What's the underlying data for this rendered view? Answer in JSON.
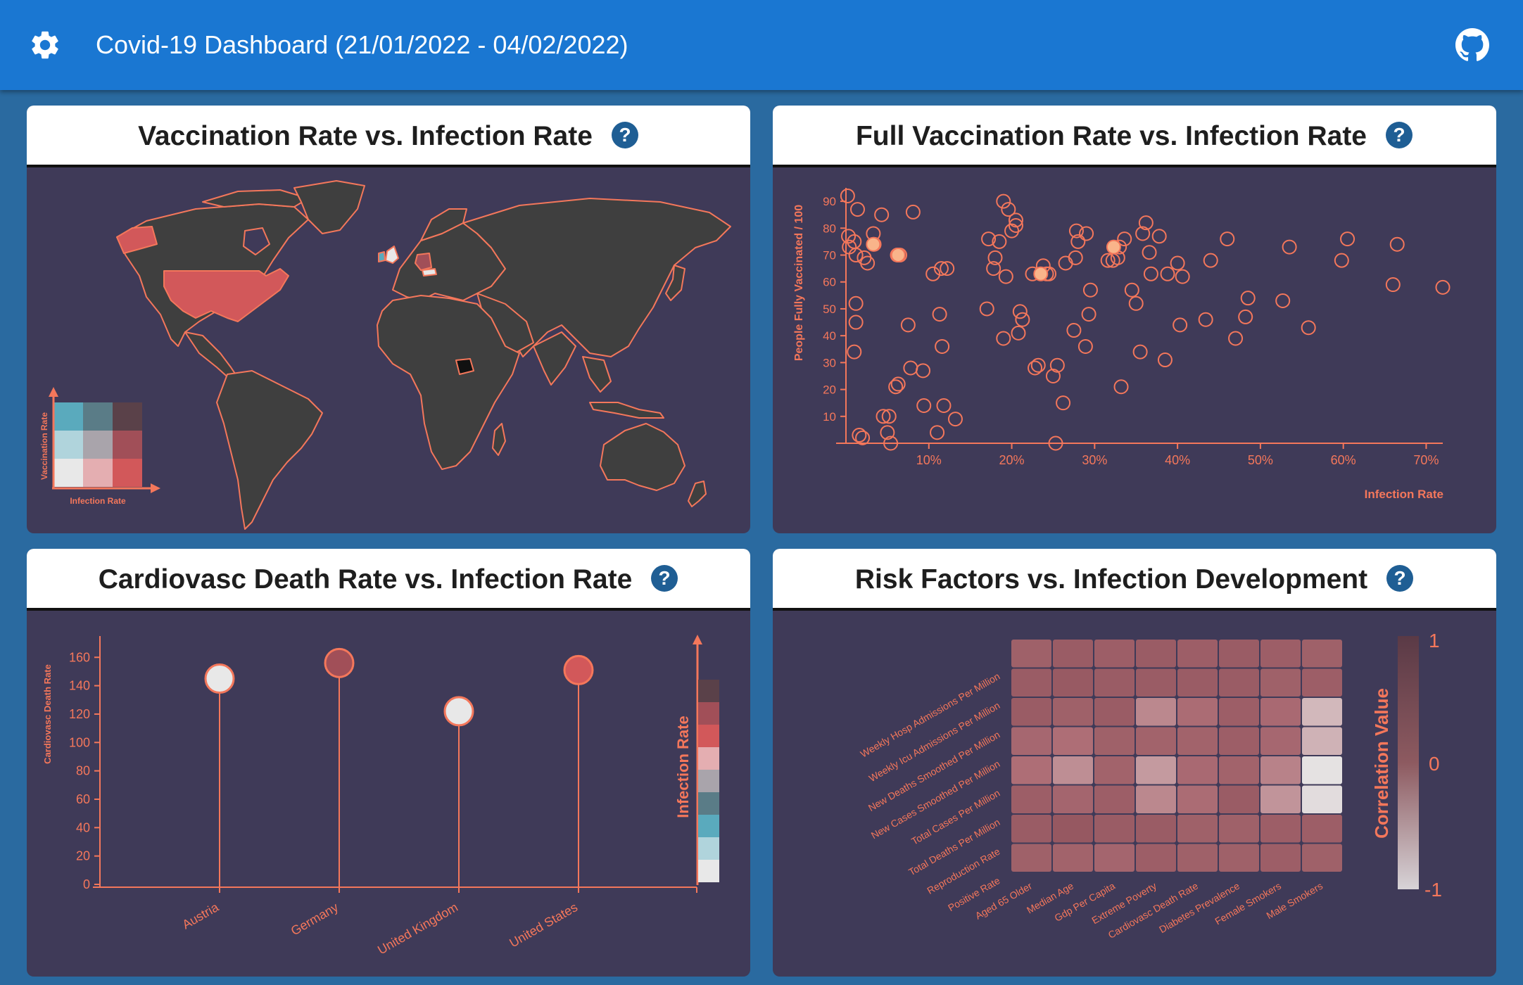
{
  "app": {
    "title": "Covid-19 Dashboard (21/01/2022 - 04/02/2022)",
    "settings_icon": "gear-icon",
    "github_icon": "github-icon"
  },
  "colors": {
    "appbar": "#1a77d2",
    "page_bg": "#2a6aa0",
    "panel_bg": "#3f3a58",
    "accent": "#f4775b",
    "land": "#3f3f3f"
  },
  "panels": {
    "map": {
      "title": "Vaccination Rate vs. Infection Rate",
      "legend_y_label": "Vaccination Rate",
      "legend_x_label": "Infection Rate",
      "bivariate_colors": [
        [
          "#5aaabd",
          "#5a7c87",
          "#5a4149"
        ],
        [
          "#b0d4dc",
          "#a9a4ab",
          "#a14f58"
        ],
        [
          "#e8e8e8",
          "#e4aeb1",
          "#d2585a"
        ]
      ]
    },
    "scatter": {
      "title": "Full Vaccination Rate vs. Infection Rate",
      "ylabel": "People Fully Vaccinated / 100",
      "xlabel": "Infection Rate"
    },
    "lollipop": {
      "title": "Cardiovasc Death Rate vs. Infection Rate",
      "ylabel": "Cardiovasc Death Rate",
      "legend_label": "Infection Rate"
    },
    "heatmap": {
      "title": "Risk Factors vs. Infection Development",
      "legend_label": "Correlation Value",
      "legend_max": "1",
      "legend_mid": "0",
      "legend_min": "-1"
    }
  },
  "chart_data": [
    {
      "type": "scatter",
      "title": "Full Vaccination Rate vs. Infection Rate",
      "xlabel": "Infection Rate",
      "ylabel": "People Fully Vaccinated / 100",
      "xlim": [
        0,
        0.72
      ],
      "ylim": [
        0,
        95
      ],
      "xticks": [
        "10%",
        "20%",
        "30%",
        "40%",
        "50%",
        "60%",
        "70%"
      ],
      "yticks": [
        "10",
        "20",
        "30",
        "40",
        "50",
        "60",
        "70",
        "80",
        "90"
      ],
      "points": [
        [
          0.002,
          92
        ],
        [
          0.003,
          77
        ],
        [
          0.004,
          73
        ],
        [
          0.014,
          87
        ],
        [
          0.01,
          75
        ],
        [
          0.012,
          70
        ],
        [
          0.026,
          67
        ],
        [
          0.022,
          69
        ],
        [
          0.033,
          78
        ],
        [
          0.034,
          74
        ],
        [
          0.043,
          85
        ],
        [
          0.081,
          86
        ],
        [
          0.062,
          70
        ],
        [
          0.065,
          70
        ],
        [
          0.012,
          52
        ],
        [
          0.012,
          45
        ],
        [
          0.01,
          34
        ],
        [
          0.016,
          3
        ],
        [
          0.02,
          2
        ],
        [
          0.045,
          10
        ],
        [
          0.052,
          10
        ],
        [
          0.05,
          4
        ],
        [
          0.054,
          0
        ],
        [
          0.06,
          21
        ],
        [
          0.063,
          22
        ],
        [
          0.078,
          28
        ],
        [
          0.093,
          27
        ],
        [
          0.075,
          44
        ],
        [
          0.094,
          14
        ],
        [
          0.11,
          4
        ],
        [
          0.118,
          14
        ],
        [
          0.132,
          9
        ],
        [
          0.105,
          63
        ],
        [
          0.115,
          65
        ],
        [
          0.122,
          65
        ],
        [
          0.113,
          48
        ],
        [
          0.116,
          36
        ],
        [
          0.17,
          50
        ],
        [
          0.172,
          76
        ],
        [
          0.178,
          65
        ],
        [
          0.18,
          69
        ],
        [
          0.185,
          75
        ],
        [
          0.19,
          90
        ],
        [
          0.196,
          87
        ],
        [
          0.193,
          62
        ],
        [
          0.19,
          39
        ],
        [
          0.2,
          79
        ],
        [
          0.205,
          81
        ],
        [
          0.205,
          83
        ],
        [
          0.208,
          41
        ],
        [
          0.21,
          49
        ],
        [
          0.213,
          46
        ],
        [
          0.225,
          63
        ],
        [
          0.228,
          28
        ],
        [
          0.232,
          29
        ],
        [
          0.238,
          66
        ],
        [
          0.242,
          63
        ],
        [
          0.245,
          63
        ],
        [
          0.25,
          25
        ],
        [
          0.253,
          0
        ],
        [
          0.255,
          29
        ],
        [
          0.262,
          15
        ],
        [
          0.265,
          67
        ],
        [
          0.275,
          42
        ],
        [
          0.277,
          69
        ],
        [
          0.278,
          79
        ],
        [
          0.28,
          75
        ],
        [
          0.29,
          78
        ],
        [
          0.289,
          36
        ],
        [
          0.293,
          48
        ],
        [
          0.295,
          57
        ],
        [
          0.316,
          68
        ],
        [
          0.322,
          68
        ],
        [
          0.328,
          69
        ],
        [
          0.33,
          73
        ],
        [
          0.332,
          21
        ],
        [
          0.336,
          76
        ],
        [
          0.345,
          57
        ],
        [
          0.35,
          52
        ],
        [
          0.355,
          34
        ],
        [
          0.358,
          78
        ],
        [
          0.362,
          82
        ],
        [
          0.366,
          71
        ],
        [
          0.368,
          63
        ],
        [
          0.378,
          77
        ],
        [
          0.385,
          31
        ],
        [
          0.388,
          63
        ],
        [
          0.4,
          67
        ],
        [
          0.403,
          44
        ],
        [
          0.406,
          62
        ],
        [
          0.434,
          46
        ],
        [
          0.44,
          68
        ],
        [
          0.46,
          76
        ],
        [
          0.47,
          39
        ],
        [
          0.482,
          47
        ],
        [
          0.485,
          54
        ],
        [
          0.527,
          53
        ],
        [
          0.535,
          73
        ],
        [
          0.558,
          43
        ],
        [
          0.598,
          68
        ],
        [
          0.605,
          76
        ],
        [
          0.66,
          59
        ],
        [
          0.665,
          74
        ],
        [
          0.72,
          58
        ]
      ],
      "highlighted": [
        [
          0.033,
          74
        ],
        [
          0.063,
          70
        ],
        [
          0.323,
          73
        ],
        [
          0.235,
          63
        ]
      ]
    },
    {
      "type": "bar",
      "subtype": "lollipop",
      "title": "Cardiovasc Death Rate vs. Infection Rate",
      "ylabel": "Cardiovasc Death Rate",
      "categories": [
        "Austria",
        "Germany",
        "United Kingdom",
        "United States"
      ],
      "values": [
        145,
        156,
        122,
        151
      ],
      "point_colors": [
        "#e8e8e8",
        "#a14f58",
        "#e8e8e8",
        "#d2585a"
      ],
      "ylim": [
        0,
        175
      ],
      "yticks": [
        0,
        20,
        40,
        60,
        80,
        100,
        120,
        140,
        160
      ]
    },
    {
      "type": "heatmap",
      "title": "Risk Factors vs. Infection Development",
      "rows": [
        "Weekly Hosp Admissions Per Million",
        "Weekly Icu Admissions Per Million",
        "New Deaths Smoothed Per Million",
        "New Cases Smoothed Per Million",
        "Total Cases Per Million",
        "Total Deaths Per Million",
        "Reproduction Rate",
        "Positive Rate"
      ],
      "columns": [
        "Aged 65 Older",
        "Median Age",
        "Gdp Per Capita",
        "Extreme Poverty",
        "Cardiovasc Death Rate",
        "Diabetes Prevalence",
        "Female Smokers",
        "Male Smokers"
      ],
      "values": [
        [
          0.35,
          0.45,
          0.4,
          0.45,
          0.4,
          0.45,
          0.4,
          0.35
        ],
        [
          0.45,
          0.5,
          0.45,
          0.45,
          0.45,
          0.45,
          0.35,
          0.4
        ],
        [
          0.45,
          0.35,
          0.45,
          -0.2,
          0.1,
          0.4,
          0.15,
          -0.6
        ],
        [
          0.2,
          0.05,
          0.35,
          0.3,
          0.3,
          0.4,
          0.2,
          -0.55
        ],
        [
          0.05,
          -0.25,
          0.3,
          -0.35,
          0.15,
          0.3,
          -0.15,
          -0.95
        ],
        [
          0.4,
          0.25,
          0.4,
          -0.2,
          0.1,
          0.45,
          -0.3,
          -0.9
        ],
        [
          0.45,
          0.55,
          0.45,
          0.45,
          0.35,
          0.35,
          0.4,
          0.4
        ],
        [
          0.35,
          0.3,
          0.25,
          0.4,
          0.35,
          0.35,
          0.4,
          0.35
        ]
      ],
      "colorbar": {
        "label": "Correlation Value",
        "range": [
          -1,
          1
        ]
      }
    }
  ]
}
